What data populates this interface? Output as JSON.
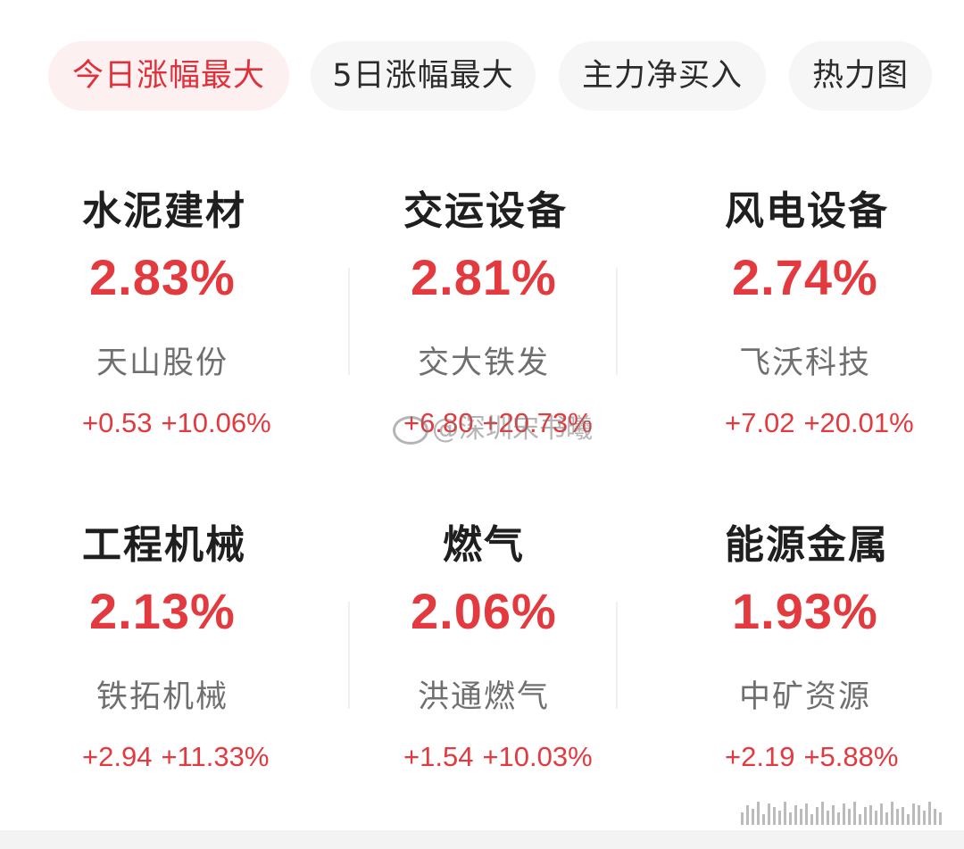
{
  "tabs": [
    {
      "label": "今日涨幅最大",
      "active": true
    },
    {
      "label": "5日涨幅最大",
      "active": false
    },
    {
      "label": "主力净买入",
      "active": false
    },
    {
      "label": "热力图",
      "active": false
    }
  ],
  "sectors": [
    {
      "name": "水泥建材",
      "pct": "2.83%",
      "stock": "天山股份",
      "change": "+0.53",
      "change_pct": "+10.06%"
    },
    {
      "name": "交运设备",
      "pct": "2.81%",
      "stock": "交大铁发",
      "change": "+6.80",
      "change_pct": "+20.73%"
    },
    {
      "name": "风电设备",
      "pct": "2.74%",
      "stock": "飞沃科技",
      "change": "+7.02",
      "change_pct": "+20.01%"
    },
    {
      "name": "工程机械",
      "pct": "2.13%",
      "stock": "铁拓机械",
      "change": "+2.94",
      "change_pct": "+11.33%"
    },
    {
      "name": "燃气",
      "pct": "2.06%",
      "stock": "洪通燃气",
      "change": "+1.54",
      "change_pct": "+10.03%"
    },
    {
      "name": "能源金属",
      "pct": "1.93%",
      "stock": "中矿资源",
      "change": "+2.19",
      "change_pct": "+5.88%"
    }
  ],
  "watermark": "@深圳宋书曦",
  "colors": {
    "up": "#e23a3f",
    "active_tab_bg": "#fdf0f0",
    "tab_bg": "#f6f6f6"
  }
}
